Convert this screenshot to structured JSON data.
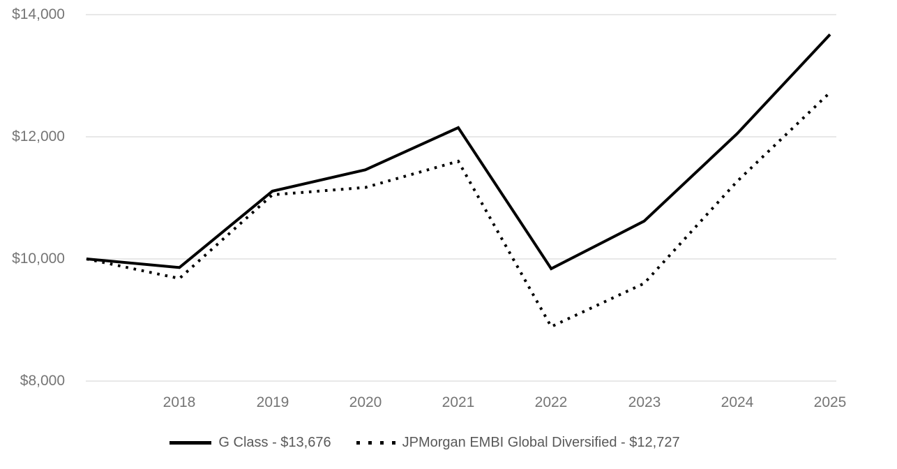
{
  "chart_data": {
    "type": "line",
    "title": "",
    "x_tick_labels": [
      "2018",
      "2019",
      "2020",
      "2021",
      "2022",
      "2023",
      "2024",
      "2025"
    ],
    "y_tick_labels": [
      "$14,000",
      "$12,000",
      "$10,000",
      "$8,000"
    ],
    "y_ticks": [
      14000,
      12000,
      10000,
      8000
    ],
    "ylim": [
      8000,
      14000
    ],
    "grid": "horizontal-only",
    "legend_position": "bottom-center",
    "series": [
      {
        "name": "G Class - $13,676",
        "line_style": "solid",
        "color": "#000000",
        "final_value": 13676,
        "values": [
          10000,
          9860,
          11110,
          11460,
          12150,
          9840,
          10620,
          12050,
          13676
        ]
      },
      {
        "name": "JPMorgan EMBI Global Diversified - $12,727",
        "line_style": "dotted",
        "color": "#000000",
        "final_value": 12727,
        "values": [
          10000,
          9680,
          11050,
          11170,
          11600,
          8890,
          9600,
          11270,
          12727
        ]
      }
    ]
  },
  "colors": {
    "grid": "#e0e0e0",
    "axis_text": "#757575",
    "legend_text": "#595959",
    "line": "#000000"
  }
}
